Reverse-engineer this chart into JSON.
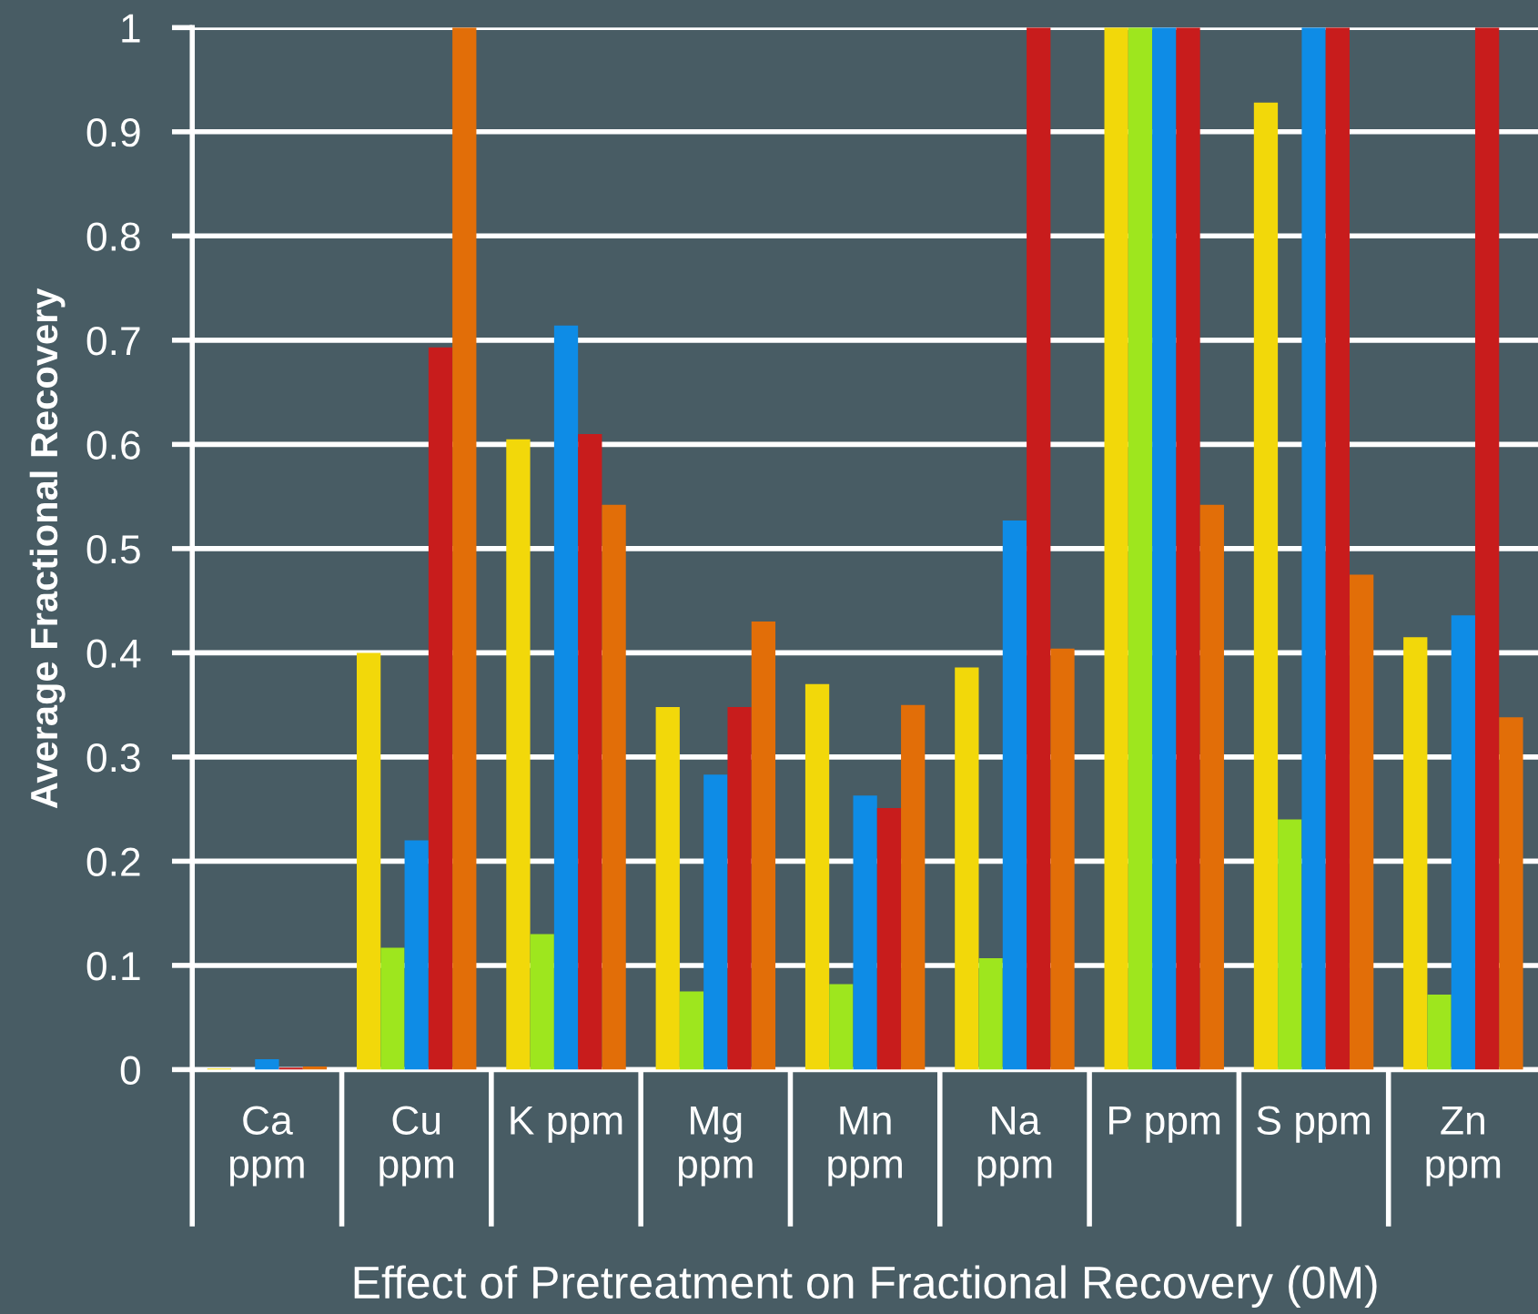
{
  "chart_data": {
    "type": "bar",
    "xlabel": "Effect of Pretreatment on Fractional Recovery (0M)",
    "ylabel": "Average Fractional Recovery",
    "categories": [
      "Ca ppm",
      "Cu ppm",
      "K ppm",
      "Mg ppm",
      "Mn ppm",
      "Na ppm",
      "P ppm",
      "S ppm",
      "Zn ppm"
    ],
    "series": [
      {
        "color": "#f2d80a",
        "values": [
          0.001,
          0.4,
          0.605,
          0.348,
          0.37,
          0.386,
          1.0,
          0.928,
          0.415
        ]
      },
      {
        "color": "#9ee61e",
        "values": [
          0,
          0.117,
          0.13,
          0.075,
          0.082,
          0.107,
          1.0,
          0.24,
          0.072
        ]
      },
      {
        "color": "#0e8ce6",
        "values": [
          0.01,
          0.22,
          0.714,
          0.283,
          0.263,
          0.527,
          1.0,
          1.0,
          0.436
        ]
      },
      {
        "color": "#c81c1c",
        "values": [
          0.002,
          0.693,
          0.61,
          0.348,
          0.251,
          1.0,
          1.0,
          1.0,
          1.0
        ]
      },
      {
        "color": "#e26e08",
        "values": [
          0.003,
          1.0,
          0.542,
          0.43,
          0.35,
          0.404,
          0.542,
          0.475,
          0.338
        ]
      }
    ],
    "ylim": [
      0,
      1
    ],
    "yticks": [
      0,
      0.1,
      0.2,
      0.3,
      0.4,
      0.5,
      0.6,
      0.7,
      0.8,
      0.9,
      1
    ],
    "grid": "y"
  }
}
